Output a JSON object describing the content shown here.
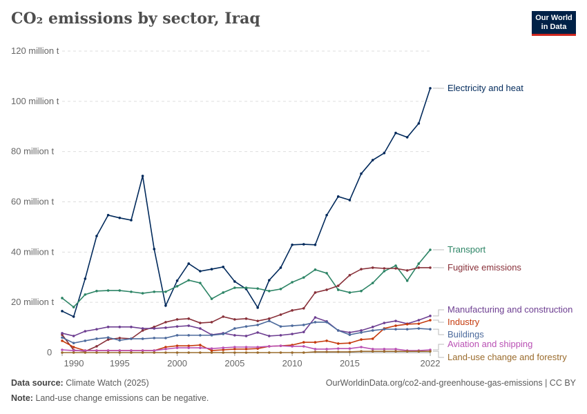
{
  "header": {
    "title": "CO₂ emissions by sector, Iraq",
    "logo_line1": "Our World",
    "logo_line2": "in Data"
  },
  "footer": {
    "source_label": "Data source:",
    "source": "Climate Watch (2025)",
    "url": "OurWorldinData.org/co2-and-greenhouse-gas-emissions | CC BY",
    "note_label": "Note:",
    "note": "Land-use change emissions can be negative."
  },
  "chart_data": {
    "type": "line",
    "title": "CO₂ emissions by sector, Iraq",
    "x": [
      1990,
      1991,
      1992,
      1993,
      1994,
      1995,
      1996,
      1997,
      1998,
      1999,
      2000,
      2001,
      2002,
      2003,
      2004,
      2005,
      2006,
      2007,
      2008,
      2009,
      2010,
      2011,
      2012,
      2013,
      2014,
      2015,
      2016,
      2017,
      2018,
      2019,
      2020,
      2021,
      2022
    ],
    "xticks": [
      1990,
      1995,
      2000,
      2005,
      2010,
      2015,
      2022
    ],
    "xtick_labels": [
      "1990",
      "1995",
      "2000",
      "2005",
      "2010",
      "2015",
      "2022"
    ],
    "yticks": [
      0,
      20,
      40,
      60,
      80,
      100,
      120
    ],
    "ytick_labels": [
      "0",
      "20 million t",
      "40 million t",
      "60 million t",
      "80 million t",
      "100 million t",
      "120 million t"
    ],
    "ylim": [
      0,
      120
    ],
    "xlim": [
      1990,
      2022
    ],
    "grid": "horizontal dashed",
    "legend": "right, inline labels",
    "series": [
      {
        "name": "Electricity and heat",
        "color": "#00295b",
        "values": [
          16.5,
          14.3,
          29.4,
          46.4,
          54.7,
          53.6,
          52.7,
          70.3,
          41.2,
          18.7,
          28.6,
          35.4,
          32.4,
          33.2,
          34.1,
          28.3,
          25.3,
          17.9,
          28.8,
          33.8,
          42.9,
          43.1,
          42.9,
          54.7,
          62.1,
          60.7,
          71.2,
          76.6,
          79.4,
          87.4,
          85.7,
          91.2,
          105.2
        ]
      },
      {
        "name": "Transport",
        "color": "#2c8465",
        "values": [
          21.7,
          18.1,
          23.1,
          24.5,
          24.7,
          24.7,
          24.2,
          23.6,
          24.2,
          24.2,
          26.4,
          28.8,
          27.7,
          21.4,
          23.9,
          25.8,
          25.8,
          25.5,
          24.5,
          25.3,
          28.0,
          29.9,
          33.0,
          31.6,
          25.0,
          23.9,
          24.5,
          27.7,
          32.4,
          34.6,
          28.6,
          35.4,
          40.9
        ]
      },
      {
        "name": "Fugitive emissions",
        "color": "#883039",
        "values": [
          7.1,
          1.0,
          0.5,
          2.5,
          5.2,
          5.8,
          5.5,
          8.8,
          10.2,
          12.1,
          13.2,
          13.5,
          11.8,
          12.1,
          14.3,
          13.2,
          13.5,
          12.6,
          13.5,
          15.1,
          16.8,
          17.6,
          23.9,
          25.0,
          26.6,
          30.8,
          33.2,
          33.8,
          33.5,
          33.5,
          32.7,
          33.8,
          33.8
        ]
      },
      {
        "name": "Manufacturing and construction",
        "color": "#6d3e91",
        "values": [
          7.7,
          6.6,
          8.5,
          9.3,
          10.2,
          10.2,
          10.2,
          9.6,
          9.6,
          9.9,
          10.4,
          10.7,
          9.6,
          7.1,
          7.7,
          6.9,
          6.6,
          8.0,
          6.6,
          6.9,
          7.4,
          8.2,
          14.0,
          12.4,
          8.8,
          8.0,
          8.8,
          10.2,
          11.8,
          12.6,
          11.5,
          12.9,
          14.6
        ]
      },
      {
        "name": "Industry",
        "color": "#c53a0c",
        "values": [
          4.7,
          2.2,
          0.8,
          0.8,
          0.8,
          0.8,
          0.8,
          0.8,
          0.8,
          2.2,
          2.7,
          2.7,
          3.0,
          0.8,
          1.1,
          1.4,
          1.4,
          1.6,
          2.5,
          2.7,
          3.0,
          4.1,
          4.1,
          4.7,
          3.6,
          3.8,
          5.2,
          5.5,
          9.6,
          10.7,
          11.3,
          11.5,
          12.9
        ]
      },
      {
        "name": "Buildings",
        "color": "#4c6a9c",
        "values": [
          6.0,
          3.8,
          4.7,
          5.5,
          6.0,
          4.9,
          5.5,
          5.5,
          5.8,
          5.8,
          6.9,
          6.9,
          6.9,
          6.9,
          7.4,
          9.6,
          10.4,
          11.0,
          12.6,
          10.4,
          10.7,
          11.0,
          12.1,
          12.1,
          8.8,
          7.1,
          8.0,
          8.8,
          9.3,
          9.3,
          9.3,
          9.6,
          9.3
        ]
      },
      {
        "name": "Aviation and shipping",
        "color": "#b950b4",
        "values": [
          1.1,
          0.8,
          0.8,
          0.8,
          0.8,
          0.8,
          0.8,
          0.8,
          0.8,
          1.4,
          1.9,
          1.9,
          1.9,
          1.6,
          1.9,
          2.2,
          2.2,
          2.2,
          2.5,
          2.7,
          2.5,
          2.5,
          1.4,
          1.4,
          1.6,
          1.6,
          2.2,
          1.4,
          1.4,
          1.4,
          0.8,
          0.8,
          1.1
        ]
      },
      {
        "name": "Land-use change and forestry",
        "color": "#9a6b2c",
        "values": [
          0,
          0,
          0,
          0,
          0,
          0,
          0,
          0,
          0,
          0,
          0,
          0,
          0,
          0,
          0,
          0,
          0,
          0,
          0,
          0,
          0,
          0,
          0.3,
          0.3,
          0.3,
          0.3,
          0.5,
          0.5,
          0.5,
          0.5,
          0.5,
          0.5,
          0.5
        ]
      }
    ]
  }
}
